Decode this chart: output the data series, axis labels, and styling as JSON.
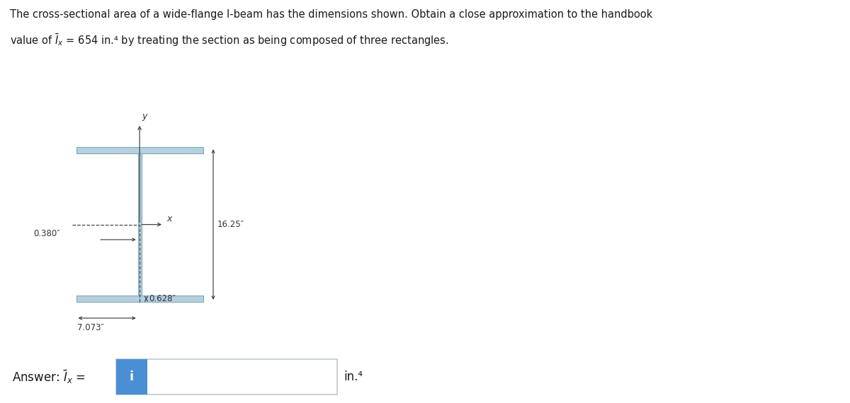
{
  "title_line1": "The cross-sectional area of a wide-flange I-beam has the dimensions shown. Obtain a close approximation to the handbook",
  "title_line2": "value of $\\bar{I}_x$ = 654 in.⁴ by treating the section as being composed of three rectangles.",
  "beam_color": "#b8d0de",
  "beam_edge_color": "#7aaabe",
  "dim_16_25": "16.25″",
  "dim_0_380": "0.380″",
  "dim_7_073": "7.073″",
  "dim_0_628": "0.628″",
  "axis_x_label": "x",
  "axis_y_label": "y",
  "bg_color": "#ffffff",
  "input_box_color": "#4a8fd4",
  "input_border_color": "#c0c8d0",
  "answer_text": "Answer: $\\bar{I}_x$ =",
  "answer_unit": "in.⁴"
}
